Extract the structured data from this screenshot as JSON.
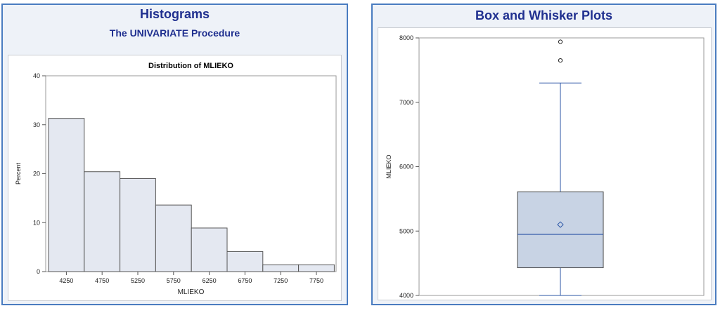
{
  "histogram_panel": {
    "title": "Histograms",
    "subtitle": "The UNIVARIATE Procedure"
  },
  "box_panel": {
    "title": "Box and Whisker Plots"
  },
  "colors": {
    "panel_border": "#4a7cc0",
    "panel_bg": "#eef2f8",
    "title": "#1f2f8f",
    "bar_fill": "#e4e8f1",
    "box_fill": "#c8d3e4",
    "series_line": "#2b55a6"
  },
  "chart_data": [
    {
      "type": "bar",
      "title": "Distribution of MLIEKO",
      "xlabel": "MLIEKO",
      "ylabel": "Percent",
      "categories": [
        "4250",
        "4750",
        "5250",
        "5750",
        "6250",
        "6750",
        "7250",
        "7750"
      ],
      "values": [
        31.3,
        20.4,
        19.0,
        13.6,
        8.9,
        4.1,
        1.4,
        1.4
      ],
      "ylim": [
        0,
        40
      ],
      "yticks": [
        0,
        10,
        20,
        30,
        40
      ],
      "grid": false
    },
    {
      "type": "box",
      "ylabel": "MLIEKO",
      "ylim": [
        4000,
        8000
      ],
      "yticks": [
        4000,
        5000,
        6000,
        7000,
        8000
      ],
      "min": 4000,
      "q1": 4430,
      "median": 4950,
      "mean": 5100,
      "q3": 5610,
      "whisker_high": 7300,
      "outliers": [
        7650,
        7940
      ],
      "grid": false
    }
  ]
}
